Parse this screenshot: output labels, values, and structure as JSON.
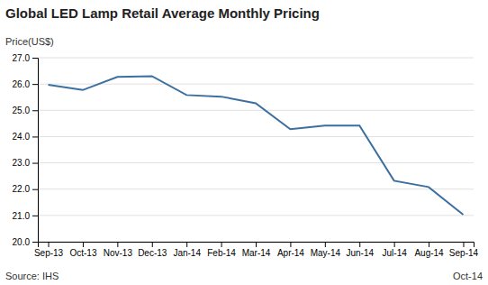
{
  "chart_data": {
    "type": "line",
    "title": "Global LED Lamp Retail Average Monthly Pricing",
    "ylabel": "Price(US$)",
    "annotations": [
      "Source: IHS",
      "Oct-14"
    ],
    "categories": [
      "Sep-13",
      "Oct-13",
      "Nov-13",
      "Dec-13",
      "Jan-14",
      "Feb-14",
      "Mar-14",
      "Apr-14",
      "May-14",
      "Jun-14",
      "Jul-14",
      "Aug-14",
      "Sep-14"
    ],
    "values": [
      25.97,
      25.77,
      26.27,
      26.3,
      25.58,
      25.52,
      25.27,
      24.28,
      24.42,
      24.42,
      22.32,
      22.08,
      21.03
    ],
    "color": "#3B6FA0",
    "ylim": [
      20.0,
      27.0
    ],
    "yticks": [
      {
        "value": 20.0,
        "label": "20.0"
      },
      {
        "value": 21.0,
        "label": "21.0"
      },
      {
        "value": 22.0,
        "label": "22.0"
      },
      {
        "value": 23.0,
        "label": "23.0"
      },
      {
        "value": 24.0,
        "label": "24.0"
      },
      {
        "value": 25.0,
        "label": "25.0"
      },
      {
        "value": 26.0,
        "label": "26.0"
      },
      {
        "value": 27.0,
        "label": "27.0"
      }
    ],
    "grid": true
  }
}
